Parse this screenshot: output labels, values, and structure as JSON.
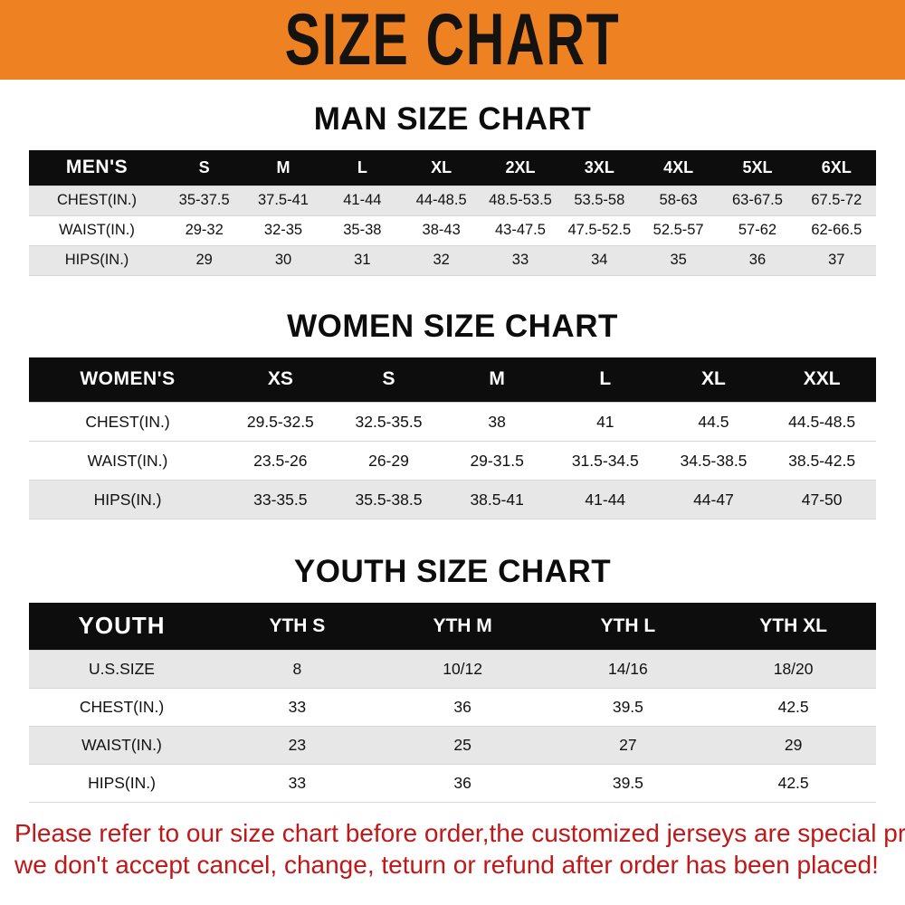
{
  "banner": {
    "title": "SIZE CHART"
  },
  "colors": {
    "banner_orange": "#EE8122",
    "header_black": "#0d0d0d",
    "row_gray": "#e7e7e7",
    "note_red": "#C01818"
  },
  "tables": [
    {
      "title": "MAN SIZE CHART",
      "header": [
        "MEN'S",
        "S",
        "M",
        "L",
        "XL",
        "2XL",
        "3XL",
        "4XL",
        "5XL",
        "6XL"
      ],
      "rows": [
        [
          "CHEST(IN.)",
          "35-37.5",
          "37.5-41",
          "41-44",
          "44-48.5",
          "48.5-53.5",
          "53.5-58",
          "58-63",
          "63-67.5",
          "67.5-72"
        ],
        [
          "WAIST(IN.)",
          "29-32",
          "32-35",
          "35-38",
          "38-43",
          "43-47.5",
          "47.5-52.5",
          "52.5-57",
          "57-62",
          "62-66.5"
        ],
        [
          "HIPS(IN.)",
          "29",
          "30",
          "31",
          "32",
          "33",
          "34",
          "35",
          "36",
          "37"
        ]
      ]
    },
    {
      "title": "WOMEN SIZE CHART",
      "header": [
        "WOMEN'S",
        "XS",
        "S",
        "M",
        "L",
        "XL",
        "XXL"
      ],
      "rows": [
        [
          "CHEST(IN.)",
          "29.5-32.5",
          "32.5-35.5",
          "38",
          "41",
          "44.5",
          "44.5-48.5"
        ],
        [
          "WAIST(IN.)",
          "23.5-26",
          "26-29",
          "29-31.5",
          "31.5-34.5",
          "34.5-38.5",
          "38.5-42.5"
        ],
        [
          "HIPS(IN.)",
          "33-35.5",
          "35.5-38.5",
          "38.5-41",
          "41-44",
          "44-47",
          "47-50"
        ]
      ]
    },
    {
      "title": "YOUTH SIZE CHART",
      "header": [
        "YOUTH",
        "YTH S",
        "YTH M",
        "YTH L",
        "YTH XL"
      ],
      "rows": [
        [
          "U.S.SIZE",
          "8",
          "10/12",
          "14/16",
          "18/20"
        ],
        [
          "CHEST(IN.)",
          "33",
          "36",
          "39.5",
          "42.5"
        ],
        [
          "WAIST(IN.)",
          "23",
          "25",
          "27",
          "29"
        ],
        [
          "HIPS(IN.)",
          "33",
          "36",
          "39.5",
          "42.5"
        ]
      ]
    }
  ],
  "note": {
    "line1": "Please refer to our size chart before order,the customized jerseys are special products,",
    "line2": "we don't accept cancel, change, teturn or refund after order has been placed!"
  }
}
